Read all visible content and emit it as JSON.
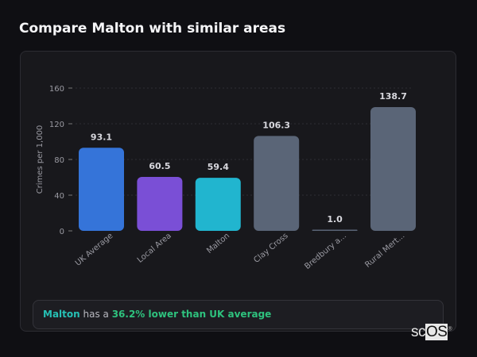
{
  "title": "Compare Malton with similar areas",
  "chart_data": {
    "type": "bar",
    "categories": [
      "UK Average",
      "Local Area",
      "Malton",
      "Clay Cross",
      "Bredbury a...",
      "Rural Mert..."
    ],
    "values": [
      93.1,
      60.5,
      59.4,
      106.3,
      1.0,
      138.7
    ],
    "value_labels": [
      "93.1",
      "60.5",
      "59.4",
      "106.3",
      "1.0",
      "138.7"
    ],
    "colors": [
      "#3574d9",
      "#7a4fd6",
      "#21b5cf",
      "#5a6577",
      "#5a6577",
      "#5a6577"
    ],
    "ylabel": "Crimes per 1,000",
    "xlabel": "",
    "ylim": [
      0,
      160
    ],
    "yticks": [
      "0",
      "40",
      "80",
      "120",
      "160"
    ],
    "grid": true
  },
  "summary": {
    "area": "Malton",
    "middle": " has a ",
    "comparison": "36.2% lower than UK average"
  },
  "logo": {
    "text_a": "sc",
    "text_b": "OS",
    "mark": "®"
  }
}
